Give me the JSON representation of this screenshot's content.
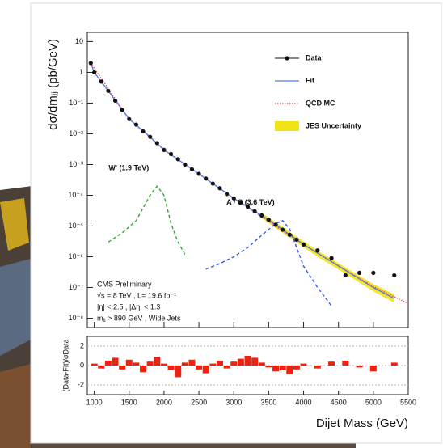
{
  "chart_data": [
    {
      "type": "line",
      "ylabel": "dσ/dmⱼⱼ (pb/GeV)",
      "xlim": [
        900,
        5500
      ],
      "ylim": [
        5e-09,
        20
      ],
      "log_y": true,
      "yticks": [
        10,
        1,
        {
          "value": 0.1,
          "label": "10⁻¹"
        },
        {
          "value": 0.01,
          "label": "10⁻²"
        },
        {
          "value": 0.001,
          "label": "10⁻³"
        },
        {
          "value": 0.0001,
          "label": "10⁻⁴"
        },
        {
          "value": 1e-05,
          "label": "10⁻⁵"
        },
        {
          "value": 1e-06,
          "label": "10⁻⁶"
        },
        {
          "value": 1e-07,
          "label": "10⁻⁷"
        },
        {
          "value": 1e-08,
          "label": "10⁻⁸"
        }
      ],
      "legend": "upper right",
      "series": [
        {
          "name": "Data",
          "style": "points",
          "color": "#111111",
          "legend": true,
          "x": [
            950,
            1000,
            1100,
            1200,
            1300,
            1400,
            1500,
            1600,
            1700,
            1800,
            1900,
            2000,
            2100,
            2200,
            2300,
            2400,
            2500,
            2600,
            2700,
            2800,
            2900,
            3000,
            3100,
            3200,
            3300,
            3400,
            3500,
            3600,
            3700,
            3800,
            3900,
            4000,
            4200,
            4400,
            4600,
            4800,
            5000,
            5300
          ],
          "values": [
            2,
            1,
            0.5,
            0.25,
            0.12,
            0.06,
            0.03,
            0.02,
            0.012,
            0.008,
            0.005,
            0.003,
            0.0022,
            0.0015,
            0.001,
            0.0007,
            0.0005,
            0.00035,
            0.00024,
            0.00017,
            0.00011,
            8e-05,
            5.8e-05,
            4.2e-05,
            3e-05,
            2.2e-05,
            1.6e-05,
            1.1e-05,
            7.6e-06,
            5.2e-06,
            3.6e-06,
            2.5e-06,
            1.6e-06,
            9e-07,
            2.5e-07,
            3e-07,
            3e-07,
            2.5e-07
          ]
        },
        {
          "name": "Fit",
          "style": "line",
          "color": "#5577ee",
          "legend": true,
          "x": [
            950,
            1000,
            1200,
            1500,
            1800,
            2000,
            2500,
            3000,
            3500,
            4000,
            4500,
            5000,
            5300
          ],
          "values": [
            2,
            1,
            0.25,
            0.03,
            0.008,
            0.003,
            0.0005,
            8e-05,
            1.6e-05,
            2.5e-06,
            5e-07,
            1e-07,
            4.4e-08
          ]
        },
        {
          "name": "QCD MC",
          "style": "dotted",
          "color": "#ee4444",
          "legend": true,
          "x": [
            950,
            1500,
            2000,
            3000,
            4000,
            4800,
            5000,
            5300,
            5500
          ],
          "values": [
            2,
            0.03,
            0.003,
            8e-05,
            2.5e-06,
            2e-07,
            1.1e-07,
            5e-08,
            3e-08
          ]
        },
        {
          "name": "JES Uncertainty",
          "style": "band",
          "color": "#f2e21a",
          "legend": true,
          "x": [
            3400,
            3800,
            4200,
            4600,
            5000,
            5300
          ],
          "values": [
            2.7e-05,
            6.5e-06,
            1.6e-06,
            4.5e-07,
            1.3e-07,
            6e-08
          ],
          "lower": [
            1.8e-05,
            4.2e-06,
            1e-06,
            2.8e-07,
            7.5e-08,
            3.2e-08
          ]
        },
        {
          "name": "W' (1.9 TeV)",
          "style": "dashed",
          "color": "#33aa33",
          "legend": false,
          "x": [
            1200,
            1400,
            1600,
            1800,
            1900,
            2000,
            2100,
            2200,
            2300
          ],
          "values": [
            3e-06,
            6e-06,
            1.5e-05,
            0.0001,
            0.0002,
            0.0001,
            1.2e-05,
            3e-06,
            1.2e-06
          ]
        },
        {
          "name": "A / C (3.6 TeV)",
          "style": "dashed",
          "color": "#3355ee",
          "legend": false,
          "x": [
            2600,
            2800,
            3000,
            3200,
            3400,
            3600,
            3700,
            3800,
            3900,
            4000,
            4200,
            4400
          ],
          "values": [
            4e-07,
            6e-07,
            1e-06,
            2e-06,
            5e-06,
            1.2e-05,
            1.5e-05,
            8e-06,
            2e-06,
            5e-07,
            1e-07,
            2.5e-08
          ]
        }
      ],
      "annotations": [
        "CMS Preliminary",
        "√s = 8 TeV , L= 19.6 fb⁻¹",
        "|η| < 2.5 , |Δη| < 1.3",
        "mⱼⱼ > 890 GeV , Wide Jets"
      ]
    },
    {
      "type": "bar",
      "xlabel": "Dijet Mass (GeV)",
      "ylabel": "(Data-Fit)/σData",
      "color": "#ee2211",
      "xlim": [
        900,
        5500
      ],
      "xticks": [
        1000,
        1500,
        2000,
        2500,
        3000,
        3500,
        4000,
        4500,
        5000,
        5500
      ],
      "ylim": [
        -3,
        3
      ],
      "yticks": [
        -2,
        0,
        2
      ],
      "x": [
        1000,
        1100,
        1200,
        1300,
        1400,
        1500,
        1600,
        1700,
        1800,
        1900,
        2000,
        2100,
        2200,
        2300,
        2400,
        2500,
        2600,
        2700,
        2800,
        2900,
        3000,
        3100,
        3200,
        3300,
        3400,
        3500,
        3600,
        3700,
        3800,
        3900,
        4000,
        4200,
        4400,
        4600,
        4800,
        5000,
        5300
      ],
      "values": [
        0.2,
        -0.3,
        0.5,
        0.8,
        -0.4,
        0.6,
        0.3,
        -0.7,
        0.4,
        0.9,
        0.2,
        -0.5,
        -1.2,
        0.3,
        0.6,
        -0.4,
        -0.8,
        0.2,
        0.5,
        -0.3,
        0.4,
        0.7,
        1.0,
        0.8,
        0.3,
        -0.2,
        -0.6,
        -0.5,
        -0.9,
        -0.4,
        0.2,
        -0.3,
        0.4,
        0.5,
        -0.2,
        -0.6,
        0.3
      ]
    }
  ]
}
